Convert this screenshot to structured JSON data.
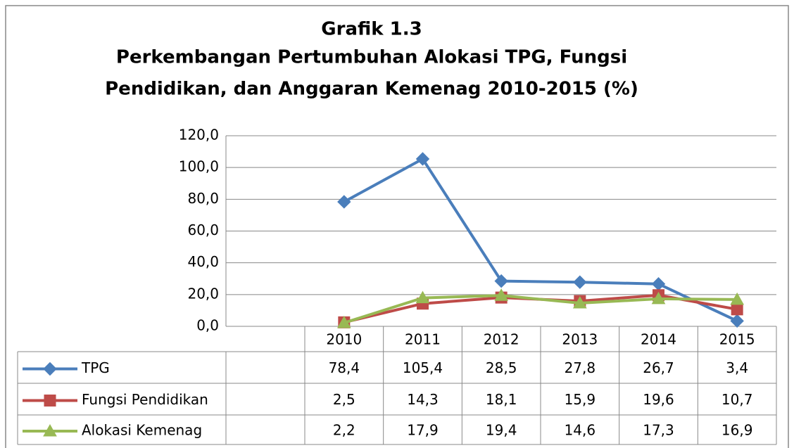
{
  "chart_data": {
    "type": "line",
    "title": [
      "Grafik 1.3",
      "Perkembangan Pertumbuhan Alokasi TPG, Fungsi",
      "Pendidikan, dan Anggaran Kemenag 2010-2015 (%)"
    ],
    "categories": [
      "2010",
      "2011",
      "2012",
      "2013",
      "2014",
      "2015"
    ],
    "series": [
      {
        "name": "TPG",
        "color": "#4a7ebb",
        "marker": "diamond",
        "values": [
          78.4,
          105.4,
          28.5,
          27.8,
          26.7,
          3.4
        ],
        "value_labels": [
          "78,4",
          "105,4",
          "28,5",
          "27,8",
          "26,7",
          "3,4"
        ]
      },
      {
        "name": "Fungsi Pendidikan",
        "color": "#be4b48",
        "marker": "square",
        "values": [
          2.5,
          14.3,
          18.1,
          15.9,
          19.6,
          10.7
        ],
        "value_labels": [
          "2,5",
          "14,3",
          "18,1",
          "15,9",
          "19,6",
          "10,7"
        ]
      },
      {
        "name": "Alokasi Kemenag",
        "color": "#98b954",
        "marker": "triangle",
        "values": [
          2.2,
          17.9,
          19.4,
          14.6,
          17.3,
          16.9
        ],
        "value_labels": [
          "2,2",
          "17,9",
          "19,4",
          "14,6",
          "17,3",
          "16,9"
        ]
      }
    ],
    "ylim": [
      0,
      120
    ],
    "yticks": [
      {
        "value": 0,
        "label": "0,0"
      },
      {
        "value": 20,
        "label": "20,0"
      },
      {
        "value": 40,
        "label": "40,0"
      },
      {
        "value": 60,
        "label": "60,0"
      },
      {
        "value": 80,
        "label": "80,0"
      },
      {
        "value": 100,
        "label": "100,0"
      },
      {
        "value": 120,
        "label": "120,0"
      }
    ],
    "grid": true
  }
}
